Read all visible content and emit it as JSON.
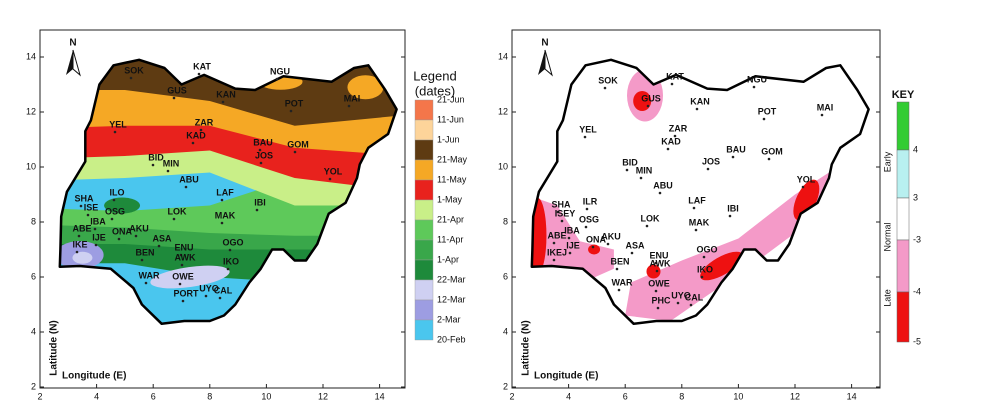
{
  "left_map": {
    "north": "N",
    "x_label": "Longitude (E)",
    "y_label": "Latitude (N)",
    "xticks": [
      2,
      4,
      6,
      8,
      10,
      12,
      14
    ],
    "yticks": [
      2,
      4,
      6,
      8,
      10,
      12,
      14
    ],
    "legend_title": "Legend",
    "legend_subtitle": "(dates)",
    "legend_labels": [
      "21-Jun",
      "11-Jun",
      "1-Jun",
      "21-May",
      "11-May",
      "1-May",
      "21-Apr",
      "11-Apr",
      "1-Apr",
      "22-Mar",
      "12-Mar",
      "2-Mar",
      "20-Feb"
    ],
    "legend_colors": [
      "#f4764a",
      "#fdd49a",
      "#5e3b12",
      "#f5a825",
      "#e8221d",
      "#c9ef88",
      "#5ec95a",
      "#39a74a",
      "#1e8a3b",
      "#cfd0f2",
      "#9d9de2",
      "#4ac6ee"
    ],
    "stations": [
      "SOK",
      "KAT",
      "NGU",
      "GUS",
      "KAN",
      "POT",
      "MAI",
      "YEL",
      "ZAR",
      "KAD",
      "BAU",
      "GOM",
      "JOS",
      "BID",
      "MIN",
      "ABU",
      "YOL",
      "ILO",
      "LAF",
      "SHA",
      "IBI",
      "ISE",
      "OSG",
      "LOK",
      "MAK",
      "IBA",
      "ABE",
      "ONA",
      "AKU",
      "ASA",
      "OGO",
      "IKE",
      "IJE",
      "ENU",
      "BEN",
      "AWK",
      "IKO",
      "WAR",
      "OWE",
      "UYO",
      "CAL",
      "PORT"
    ]
  },
  "right_map": {
    "north": "N",
    "x_label": "Longitude (E)",
    "y_label": "Latitude (N)",
    "xticks": [
      2,
      4,
      6,
      8,
      10,
      12,
      14
    ],
    "yticks": [
      2,
      4,
      6,
      8,
      10,
      12,
      14
    ],
    "legend_title": "KEY",
    "legend_labels": [
      "4",
      "3",
      "-3",
      "-4",
      "-5"
    ],
    "legend_colors": [
      "#33cc33",
      "#b8f0f0",
      "#ffffff",
      "#f49ac8",
      "#ee1111"
    ],
    "categories": [
      "Early",
      "Normal",
      "Late"
    ],
    "stations": [
      "SOK",
      "KAT",
      "NGU",
      "GUS",
      "KAN",
      "POT",
      "MAI",
      "YEL",
      "ZAR",
      "KAD",
      "JOS",
      "BAU",
      "GOM",
      "BID",
      "MIN",
      "ABU",
      "YOL",
      "ILR",
      "LAF",
      "IBI",
      "SHA",
      "ISEY",
      "OSG",
      "LOK",
      "MAK",
      "IBA",
      "ABE",
      "ONA",
      "AKU",
      "ASA",
      "IJE",
      "IKEJ",
      "OGO",
      "BEN",
      "ENU",
      "AWK",
      "IKO",
      "WAR",
      "OWE",
      "PHC",
      "UYO",
      "CAL"
    ]
  }
}
